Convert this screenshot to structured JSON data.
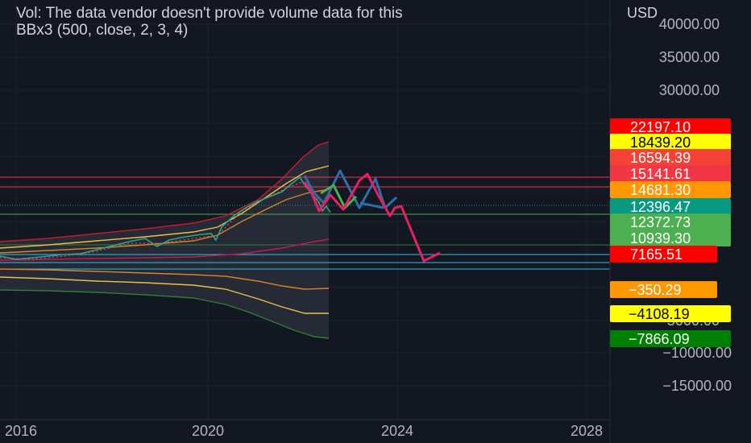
{
  "legend": {
    "vol_text": "Vol: The data vendor doesn't provide volume data for this",
    "indicator_text": "BBx3 (500, close, 2, 3, 4)"
  },
  "price_scale": {
    "currency": "USD",
    "partial_top_label": "40000.00",
    "ticks": [
      "35000.00",
      "30000.00",
      "−10000.00",
      "−15000.00"
    ],
    "partial_bottom_label": "5000.00"
  },
  "time_axis": {
    "labels": [
      "2016",
      "2020",
      "2024",
      "2028"
    ]
  },
  "price_tags": [
    {
      "text": "22197.10",
      "bg": "#ff0000",
      "fg": "#ffffff"
    },
    {
      "text": "18439.20",
      "bg": "#ffff00",
      "fg": "#000000"
    },
    {
      "text": "16594.39",
      "bg": "#f44336",
      "fg": "#ffffff"
    },
    {
      "text": "15141.61",
      "bg": "#f23645",
      "fg": "#ffffff"
    },
    {
      "text": "14681.30",
      "bg": "#ff9800",
      "fg": "#ffffff"
    },
    {
      "text": "12396.47",
      "bg": "#089981",
      "fg": "#ffffff"
    },
    {
      "text": "12372.73",
      "bg": "#4caf50",
      "fg": "#ffffff"
    },
    {
      "text": "10939.30",
      "bg": "#4caf50",
      "fg": "#ffffff"
    },
    {
      "text": "7165.51",
      "bg": "#ff0000",
      "fg": "#ffffff"
    },
    {
      "text": "−350.29",
      "bg": "#ff9800",
      "fg": "#ffffff"
    },
    {
      "text": "−4108.19",
      "bg": "#ffff00",
      "fg": "#000000"
    },
    {
      "text": "−7866.09",
      "bg": "#008000",
      "fg": "#ffffff"
    }
  ],
  "colors": {
    "background": "#131722",
    "text": "#b2b5be",
    "outer_band": "#c21d2a",
    "middle_band": "#e8c14a",
    "inner_band": "#d9812a",
    "basis": "#c2185b",
    "lower_outer_band": "#2e7d32",
    "projection_red": "#e91e63",
    "projection_blue": "#2a6fa8",
    "projection_green": "#4caf50",
    "hline_red": "#f23645",
    "hline_teal": "#089981",
    "hline_cyan": "#26c6da"
  }
}
